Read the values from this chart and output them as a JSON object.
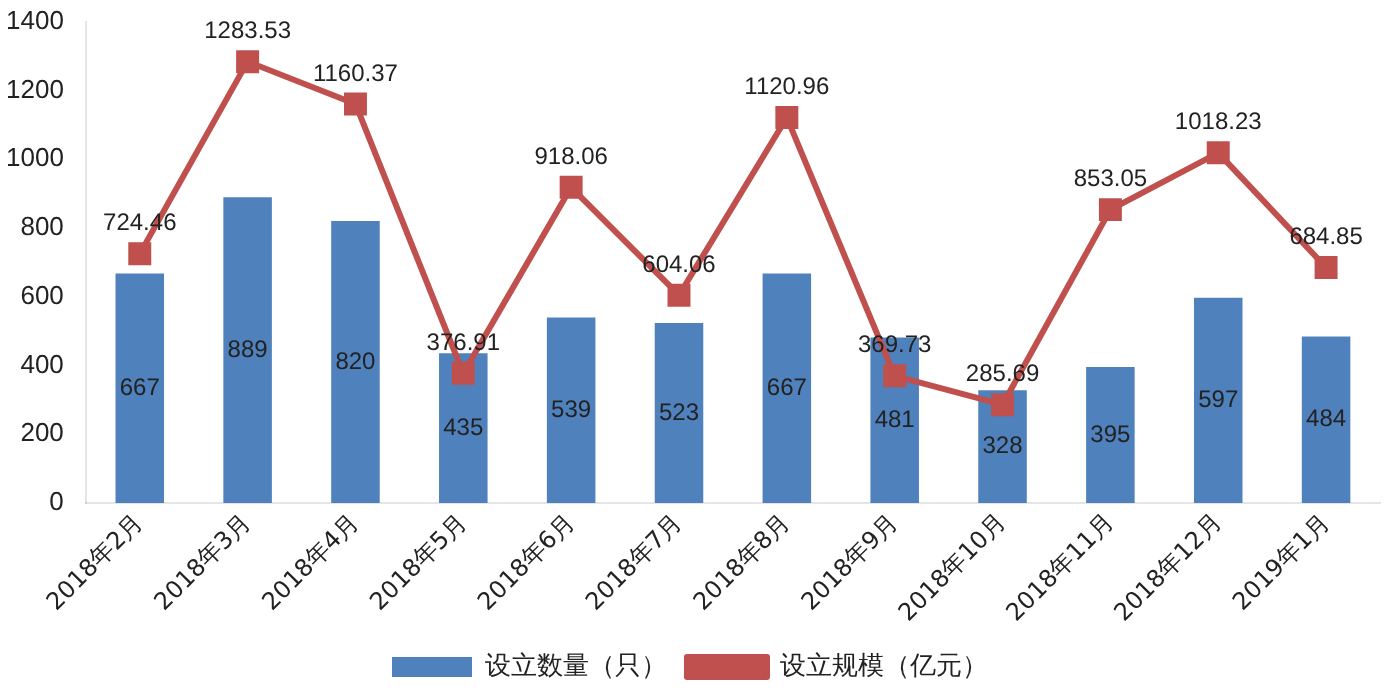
{
  "chart_data": {
    "type": "bar",
    "categories": [
      "2018年2月",
      "2018年3月",
      "2018年4月",
      "2018年5月",
      "2018年6月",
      "2018年7月",
      "2018年8月",
      "2018年9月",
      "2018年10月",
      "2018年11月",
      "2018年12月",
      "2019年1月"
    ],
    "series": [
      {
        "name": "设立数量（只）",
        "color": "#4f81bd",
        "values": [
          667,
          889,
          820,
          435,
          539,
          523,
          667,
          481,
          328,
          395,
          597,
          484
        ]
      },
      {
        "name": "设立规模（亿元）",
        "type": "line",
        "color": "#c0504d",
        "marker": "square",
        "values": [
          724.46,
          1283.53,
          1160.37,
          376.91,
          918.06,
          604.06,
          1120.96,
          369.73,
          285.69,
          853.05,
          1018.23,
          684.85
        ]
      }
    ],
    "ylim": [
      0,
      1400
    ],
    "yticks": [
      0,
      200,
      400,
      600,
      800,
      1000,
      1200,
      1400
    ],
    "grid": false,
    "legend": "bottom",
    "data_labels": true
  }
}
